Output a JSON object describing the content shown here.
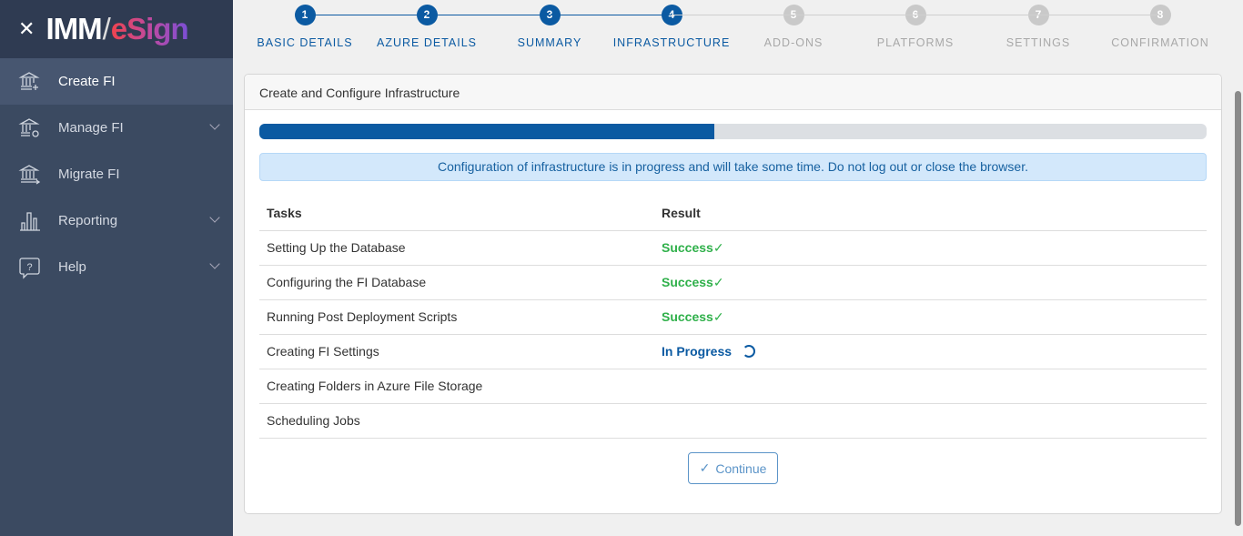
{
  "brand": {
    "close_icon": "close-icon",
    "logo_left": "IMM",
    "logo_right": "eSign"
  },
  "sidebar": {
    "items": [
      {
        "label": "Create FI",
        "icon": "bank-plus-icon",
        "active": true,
        "expandable": false
      },
      {
        "label": "Manage FI",
        "icon": "bank-gear-icon",
        "active": false,
        "expandable": true
      },
      {
        "label": "Migrate FI",
        "icon": "bank-arrow-icon",
        "active": false,
        "expandable": false
      },
      {
        "label": "Reporting",
        "icon": "bar-chart-icon",
        "active": false,
        "expandable": true
      },
      {
        "label": "Help",
        "icon": "help-bubble-icon",
        "active": false,
        "expandable": true
      }
    ]
  },
  "stepper": {
    "current": 4,
    "steps": [
      {
        "num": "1",
        "label": "BASIC DETAILS"
      },
      {
        "num": "2",
        "label": "AZURE DETAILS"
      },
      {
        "num": "3",
        "label": "SUMMARY"
      },
      {
        "num": "4",
        "label": "INFRASTRUCTURE"
      },
      {
        "num": "5",
        "label": "ADD-ONS"
      },
      {
        "num": "6",
        "label": "PLATFORMS"
      },
      {
        "num": "7",
        "label": "SETTINGS"
      },
      {
        "num": "8",
        "label": "CONFIRMATION"
      }
    ]
  },
  "card": {
    "title": "Create and Configure Infrastructure",
    "progress_percent": 48,
    "alert": "Configuration of infrastructure is in progress and will take some time. Do not log out or close the browser.",
    "table": {
      "headers": [
        "Tasks",
        "Result"
      ],
      "rows": [
        {
          "task": "Setting Up the Database",
          "result": "Success",
          "status": "success"
        },
        {
          "task": "Configuring the FI Database",
          "result": "Success",
          "status": "success"
        },
        {
          "task": "Running Post Deployment Scripts",
          "result": "Success",
          "status": "success"
        },
        {
          "task": "Creating FI Settings",
          "result": "In Progress",
          "status": "progress"
        },
        {
          "task": "Creating Folders in Azure File Storage",
          "result": "",
          "status": "pending"
        },
        {
          "task": "Scheduling Jobs",
          "result": "",
          "status": "pending"
        }
      ]
    },
    "continue_label": "Continue"
  },
  "colors": {
    "primary": "#0b5aa2",
    "success": "#2fb04a",
    "sidebar": "#3b4a61"
  }
}
